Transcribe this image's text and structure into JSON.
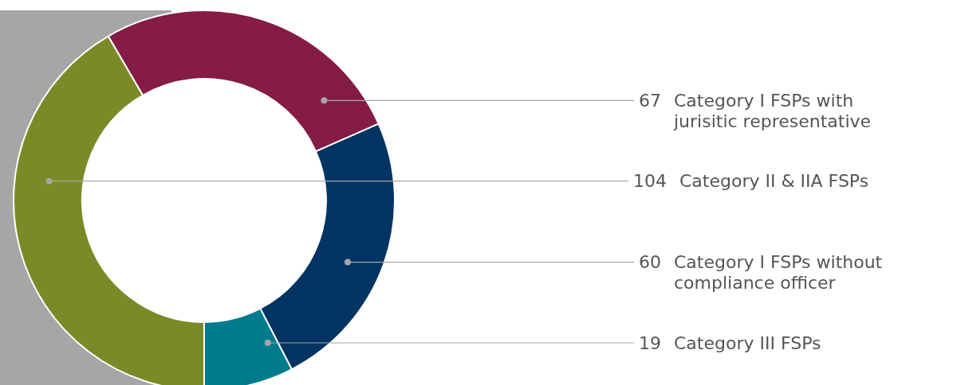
{
  "chart_data": {
    "type": "donut",
    "categories": [
      "Category I FSPs with jurisitic representative",
      "Category I FSPs without compliance officer",
      "Category III FSPs",
      "Category II & IIA FSPs"
    ],
    "values": [
      67,
      60,
      19,
      104
    ],
    "colors": [
      "#841c45",
      "#003462",
      "#007b8e",
      "#7b8a27"
    ],
    "data_labels": true
  }
}
